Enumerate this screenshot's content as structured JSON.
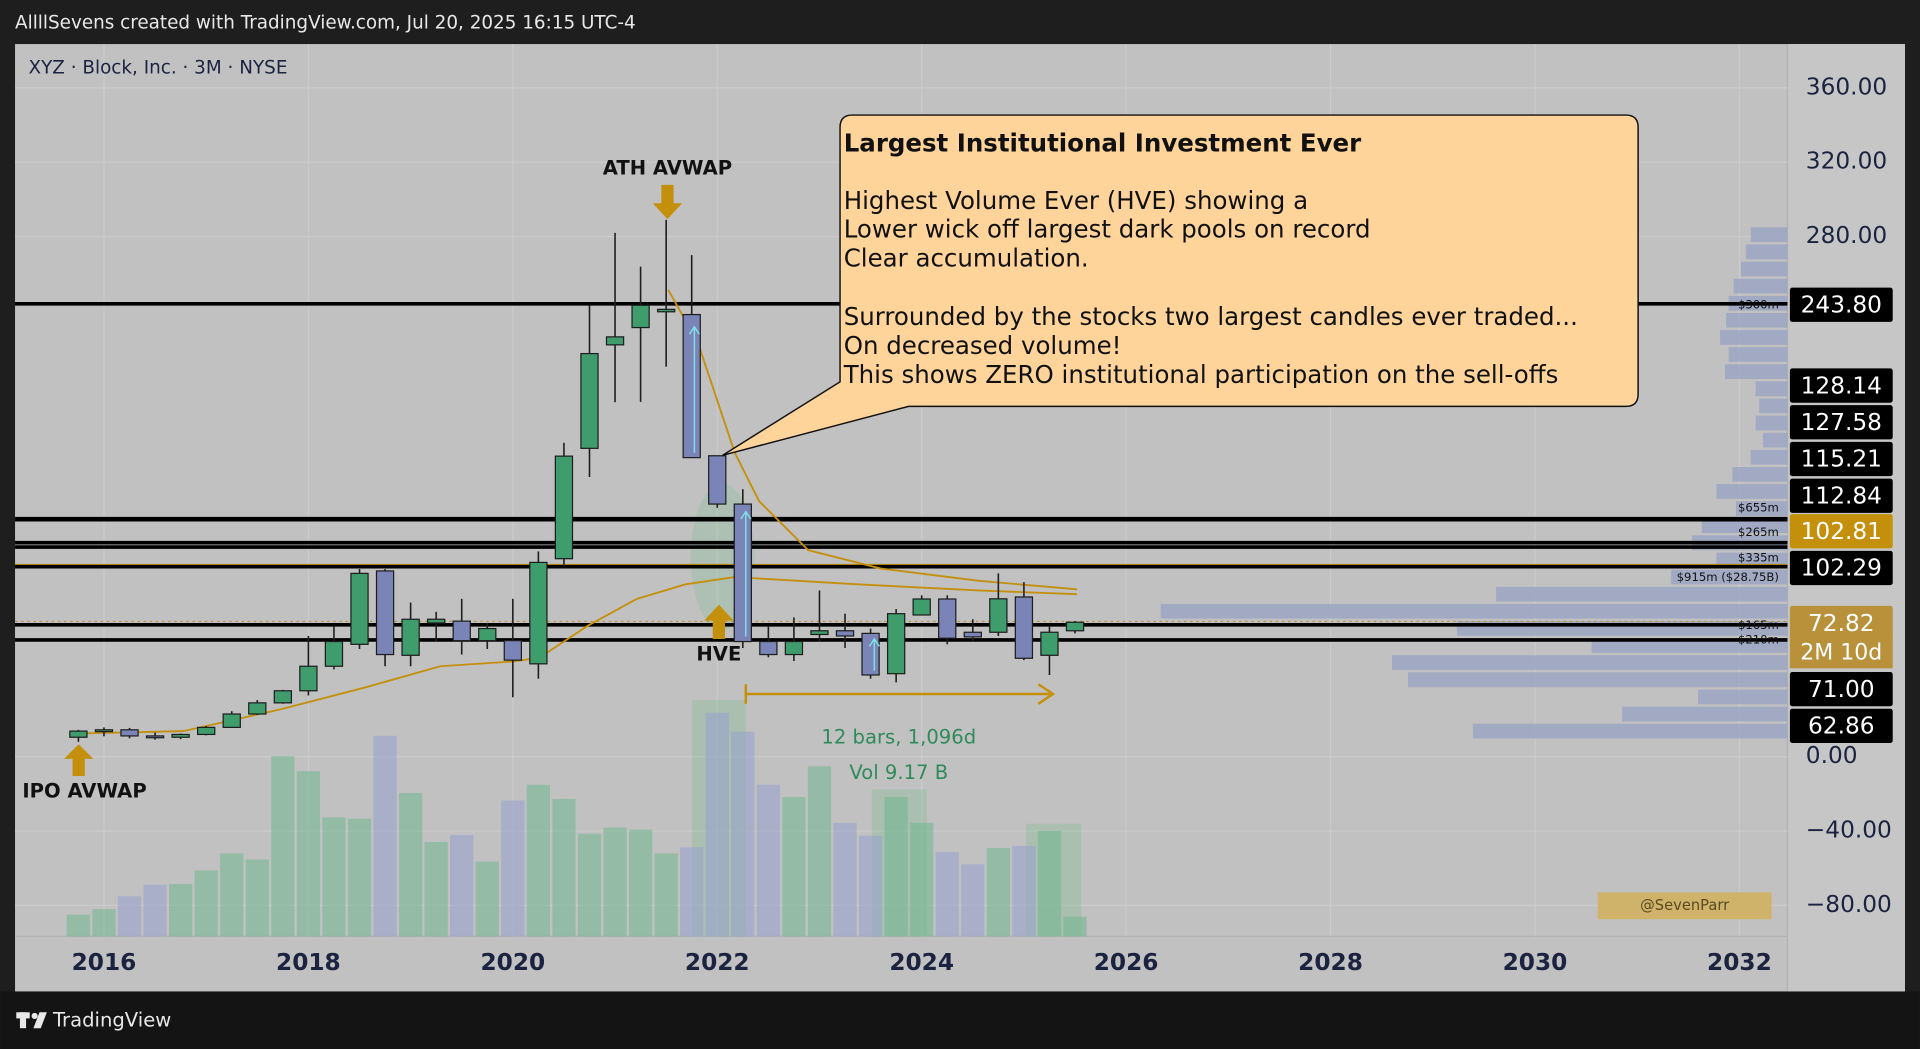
{
  "header": {
    "text": "AllllSevens created with TradingView.com, Jul 20, 2025 16:15 UTC-4"
  },
  "footer": {
    "brand": "TradingView"
  },
  "chart_data": {
    "type": "candlestick",
    "symbol": "XYZ · Block, Inc. · 3M · NYSE",
    "xlim": [
      2015.13,
      2032.47
    ],
    "xticks": [
      2016,
      2018,
      2020,
      2022,
      2024,
      2026,
      2028,
      2030,
      2032
    ],
    "ylim": [
      -96.7,
      383.6
    ],
    "yticks": [
      {
        "value": 360,
        "label": "360.00"
      },
      {
        "value": 320,
        "label": "320.00"
      },
      {
        "value": 280,
        "label": "280.00"
      },
      {
        "value": 0,
        "label": "0.00"
      },
      {
        "value": -40,
        "label": "−40.00"
      },
      {
        "value": -80,
        "label": "−80.00"
      }
    ],
    "grid": true,
    "up_color": "#3f9c6c",
    "down_color": "#7a84b6",
    "volume_up_color": "rgba(112,182,142,0.55)",
    "volume_down_color": "rgba(150,160,206,0.55)",
    "x": [
      2015.75,
      2016.0,
      2016.25,
      2016.5,
      2016.75,
      2017.0,
      2017.25,
      2017.5,
      2017.75,
      2018.0,
      2018.25,
      2018.5,
      2018.75,
      2019.0,
      2019.25,
      2019.5,
      2019.75,
      2020.0,
      2020.25,
      2020.5,
      2020.75,
      2021.0,
      2021.25,
      2021.5,
      2021.75,
      2022.0,
      2022.25,
      2022.5,
      2022.75,
      2023.0,
      2023.25,
      2023.5,
      2023.75,
      2024.0,
      2024.25,
      2024.5,
      2024.75,
      2025.0,
      2025.25,
      2025.5
    ],
    "open": [
      10.5,
      13.8,
      14.5,
      11.2,
      10.5,
      12.0,
      15.8,
      23.0,
      29.0,
      35.5,
      48.7,
      60.5,
      100.0,
      54.6,
      72.0,
      73.0,
      62.5,
      62.5,
      50.0,
      106.6,
      166.0,
      221.7,
      231.0,
      239.5,
      238.0,
      162.0,
      136.0,
      62.0,
      55.0,
      65.8,
      67.8,
      66.4,
      44.7,
      76.3,
      84.9,
      67.0,
      67.0,
      86.0,
      54.6,
      67.8
    ],
    "high": [
      14.5,
      15.8,
      15.5,
      13.0,
      12.5,
      16.5,
      24.5,
      30.5,
      36.0,
      65.0,
      70.0,
      101.0,
      101.0,
      83.0,
      78.0,
      85.0,
      72.0,
      85.0,
      110.5,
      169.0,
      243.0,
      282.0,
      263.8,
      289.0,
      270.0,
      162.0,
      144.0,
      70.0,
      75.0,
      89.5,
      77.0,
      69.0,
      79.5,
      86.9,
      86.9,
      74.0,
      98.7,
      94.0,
      70.0,
      73.0
    ],
    "low": [
      8.0,
      11.0,
      9.9,
      9.2,
      9.5,
      11.5,
      15.5,
      22.5,
      28.5,
      33.0,
      47.0,
      58.0,
      48.7,
      48.7,
      62.0,
      55.0,
      58.0,
      32.0,
      42.0,
      102.6,
      150.6,
      190.8,
      191.0,
      210.0,
      161.0,
      134.0,
      58.5,
      53.5,
      51.5,
      62.0,
      58.5,
      42.0,
      40.0,
      76.0,
      60.5,
      62.5,
      65.0,
      52.0,
      44.0,
      66.4
    ],
    "close": [
      13.8,
      14.5,
      11.2,
      10.5,
      12.0,
      15.8,
      23.0,
      29.0,
      35.5,
      48.7,
      62.0,
      98.7,
      55.0,
      74.0,
      74.0,
      62.5,
      69.0,
      52.0,
      104.6,
      161.8,
      217.0,
      226.0,
      243.0,
      240.8,
      161.0,
      136.0,
      62.0,
      55.0,
      62.0,
      67.8,
      65.0,
      44.0,
      77.0,
      84.9,
      63.8,
      64.5,
      85.0,
      53.0,
      67.0,
      72.4
    ],
    "volume": [
      32,
      40,
      59,
      76,
      77,
      97,
      122,
      113,
      265,
      243,
      175,
      173,
      295,
      211,
      139,
      149,
      110,
      200,
      223,
      202,
      151,
      160,
      157,
      122,
      131,
      329,
      301,
      223,
      205,
      250,
      167,
      148,
      205,
      167,
      124,
      106,
      130,
      133,
      155,
      29
    ],
    "volume_lim": [
      0,
      414
    ],
    "avwap": [
      {
        "name": "IPO AVWAP",
        "color": "#c4900c",
        "x": [
          2015.75,
          2016.78,
          2017.74,
          2018.57,
          2019.29,
          2020.01,
          2020.26,
          2020.73,
          2021.21,
          2021.69,
          2022.17,
          2023.37,
          2024.56,
          2025.52
        ],
        "values": [
          12.5,
          13.8,
          25.7,
          37.5,
          48.7,
          51.3,
          53.3,
          70.4,
          84.9,
          92.8,
          96.7,
          92.8,
          89.5,
          87.5
        ]
      },
      {
        "name": "ATH AVWAP",
        "color": "#c4900c",
        "x": [
          2021.52,
          2021.81,
          2022.17,
          2022.41,
          2022.89,
          2023.6,
          2024.56,
          2025.52
        ],
        "values": [
          251.3,
          223.0,
          163.8,
          137.5,
          111.2,
          101.3,
          94.7,
          90.1
        ]
      }
    ],
    "levels": [
      {
        "value": 243.8,
        "label": "243.80",
        "color": "#000000"
      },
      {
        "value": 128.14,
        "color": "#000000"
      },
      {
        "value": 127.58,
        "color": "#000000"
      },
      {
        "value": 115.21,
        "color": "#000000"
      },
      {
        "value": 112.84,
        "color": "#000000"
      },
      {
        "value": 102.81,
        "color": "#c4900c"
      },
      {
        "value": 102.29,
        "color": "#000000"
      },
      {
        "value": 72.82,
        "color": "#b8913a"
      },
      {
        "value": 71,
        "label": "71.00",
        "color": "#000000"
      },
      {
        "value": 62.86,
        "color": "#000000"
      }
    ],
    "countdown": "2M 10d",
    "profile": {
      "bins": [
        9.2,
        18.4,
        27.6,
        36.8,
        46.1,
        55.3,
        64.5,
        73.7,
        82.9,
        92.1,
        101.3,
        110.5,
        119.8,
        129.0,
        138.2,
        147.4,
        156.6,
        165.8,
        175.0,
        184.2,
        193.4,
        202.7,
        211.9,
        221.1,
        230.3,
        239.5,
        248.7,
        257.9,
        267.1,
        276.4,
        285.6
      ],
      "values": [
        257,
        135,
        73,
        310,
        323,
        160,
        270,
        512,
        238,
        95,
        58,
        78,
        70,
        42,
        58,
        45,
        30,
        20,
        26,
        23,
        26,
        51,
        48,
        55,
        50,
        48,
        44,
        38,
        34,
        30
      ],
      "xlim": [
        0,
        520
      ],
      "color": "rgba(150,160,195,0.75)"
    },
    "dark_pool_labels": [
      "$300m",
      "$655m",
      "$265m",
      "$335m",
      "$915m ($28.75B)",
      "$165m",
      "$210m"
    ],
    "hve_label": "HVE",
    "measure": {
      "bars": "12 bars, 1,096d",
      "volume": "Vol 9.17 B"
    },
    "callout": {
      "title": "Largest Institutional Investment Ever",
      "paragraphs": [
        [
          "Highest Volume Ever (HVE) showing a",
          "Lower wick off largest dark pools on record",
          "Clear accumulation."
        ],
        [
          "Surrounded by the stocks two largest candles ever traded...",
          "On decreased volume!",
          "This shows ZERO institutional participation on the sell-offs"
        ]
      ]
    },
    "watermark": "@SevenParr"
  }
}
